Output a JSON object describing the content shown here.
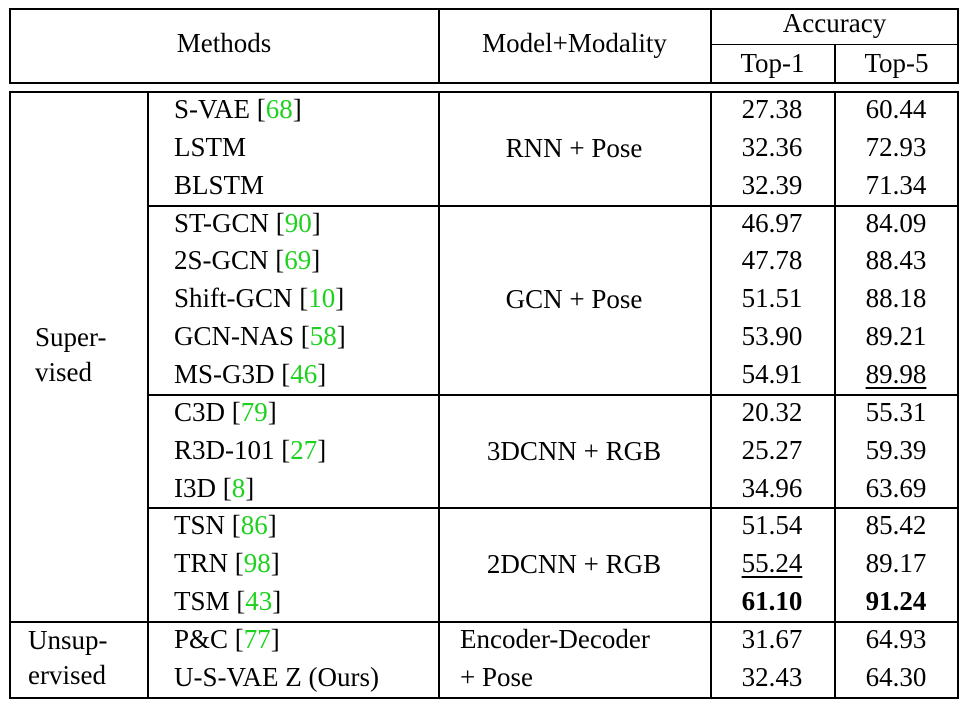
{
  "header": {
    "methods": "Methods",
    "model_modality": "Model+Modality",
    "accuracy": "Accuracy",
    "top1": "Top-1",
    "top5": "Top-5"
  },
  "groups": [
    {
      "label_lines": [
        "Super-",
        "vised"
      ],
      "blocks": [
        {
          "model": "RNN + Pose",
          "rows": [
            {
              "name": "S-VAE",
              "cite": "68",
              "top1": "27.38",
              "top5": "60.44"
            },
            {
              "name": "LSTM",
              "cite": null,
              "top1": "32.36",
              "top5": "72.93"
            },
            {
              "name": "BLSTM",
              "cite": null,
              "top1": "32.39",
              "top5": "71.34"
            }
          ]
        },
        {
          "model": "GCN + Pose",
          "rows": [
            {
              "name": "ST-GCN",
              "cite": "90",
              "top1": "46.97",
              "top5": "84.09"
            },
            {
              "name": "2S-GCN",
              "cite": "69",
              "top1": "47.78",
              "top5": "88.43"
            },
            {
              "name": "Shift-GCN",
              "cite": "10",
              "top1": "51.51",
              "top5": "88.18"
            },
            {
              "name": "GCN-NAS",
              "cite": "58",
              "top1": "53.90",
              "top5": "89.21"
            },
            {
              "name": "MS-G3D",
              "cite": "46",
              "top1": "54.91",
              "top5": "89.98",
              "top5_underline": true
            }
          ]
        },
        {
          "model": "3DCNN + RGB",
          "rows": [
            {
              "name": "C3D",
              "cite": "79",
              "top1": "20.32",
              "top5": "55.31"
            },
            {
              "name": "R3D-101",
              "cite": "27",
              "top1": "25.27",
              "top5": "59.39"
            },
            {
              "name": "I3D",
              "cite": "8",
              "top1": "34.96",
              "top5": "63.69"
            }
          ]
        },
        {
          "model": "2DCNN + RGB",
          "rows": [
            {
              "name": "TSN",
              "cite": "86",
              "top1": "51.54",
              "top5": "85.42"
            },
            {
              "name": "TRN",
              "cite": "98",
              "top1": "55.24",
              "top5": "89.17",
              "top1_underline": true
            },
            {
              "name": "TSM",
              "cite": "43",
              "top1": "61.10",
              "top5": "91.24",
              "top1_bold": true,
              "top5_bold": true
            }
          ]
        }
      ]
    },
    {
      "label_lines": [
        "Unsup-",
        "ervised"
      ],
      "blocks": [
        {
          "model_lines": [
            "Encoder-Decoder",
            "+ Pose"
          ],
          "rows": [
            {
              "name": "P&C",
              "cite": "77",
              "top1": "31.67",
              "top5": "64.93"
            },
            {
              "name": "U-S-VAE Z (Ours)",
              "cite": null,
              "top1": "32.43",
              "top5": "64.30"
            }
          ]
        }
      ]
    }
  ]
}
